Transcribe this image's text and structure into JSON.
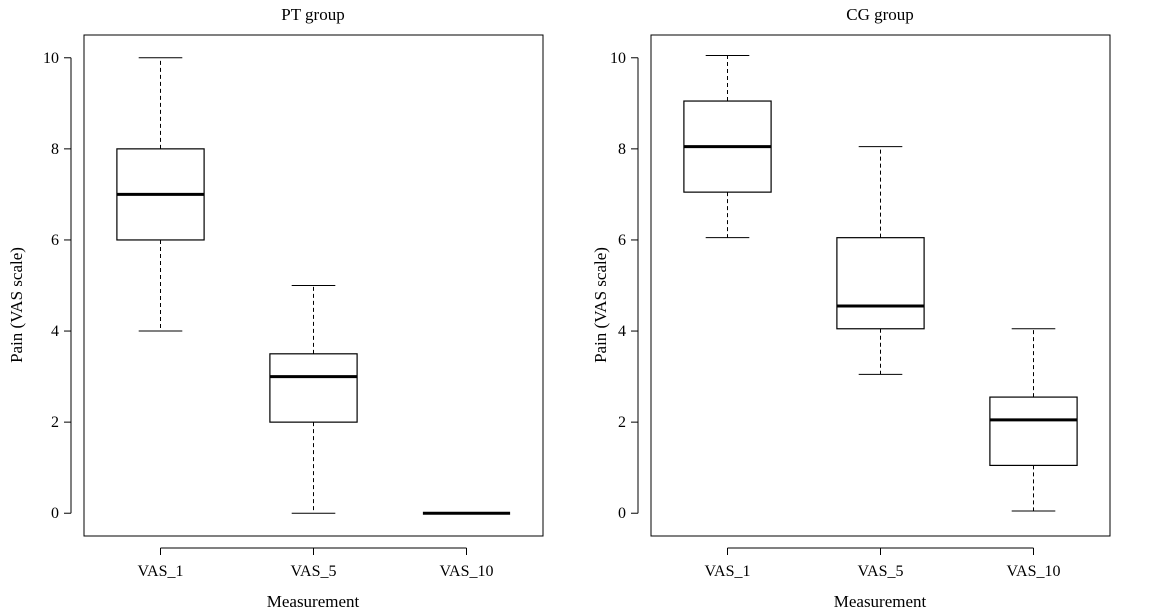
{
  "chart_data": [
    {
      "type": "box",
      "title": "PT group",
      "xlabel": "Measurement",
      "ylabel": "Pain (VAS scale)",
      "ylim": [
        -0.5,
        10.5
      ],
      "yticks": [
        0,
        2,
        4,
        6,
        8,
        10
      ],
      "categories": [
        "VAS_1",
        "VAS_5",
        "VAS_10"
      ],
      "boxes": [
        {
          "min": 4,
          "q1": 6,
          "median": 7,
          "q3": 8,
          "max": 10
        },
        {
          "min": 0,
          "q1": 2,
          "median": 3,
          "q3": 3.5,
          "max": 5
        },
        {
          "min": 0,
          "q1": 0,
          "median": 0,
          "q3": 0,
          "max": 0
        }
      ]
    },
    {
      "type": "box",
      "title": "CG group",
      "xlabel": "Measurement",
      "ylabel": "Pain (VAS scale)",
      "ylim": [
        -0.5,
        10.5
      ],
      "yticks": [
        0,
        2,
        4,
        6,
        8,
        10
      ],
      "categories": [
        "VAS_1",
        "VAS_5",
        "VAS_10"
      ],
      "boxes": [
        {
          "min": 6.05,
          "q1": 7.05,
          "median": 8.05,
          "q3": 9.05,
          "max": 10.05
        },
        {
          "min": 3.05,
          "q1": 4.05,
          "median": 4.55,
          "q3": 6.05,
          "max": 8.05
        },
        {
          "min": 0.05,
          "q1": 1.05,
          "median": 2.05,
          "q3": 2.55,
          "max": 4.05
        }
      ]
    }
  ]
}
